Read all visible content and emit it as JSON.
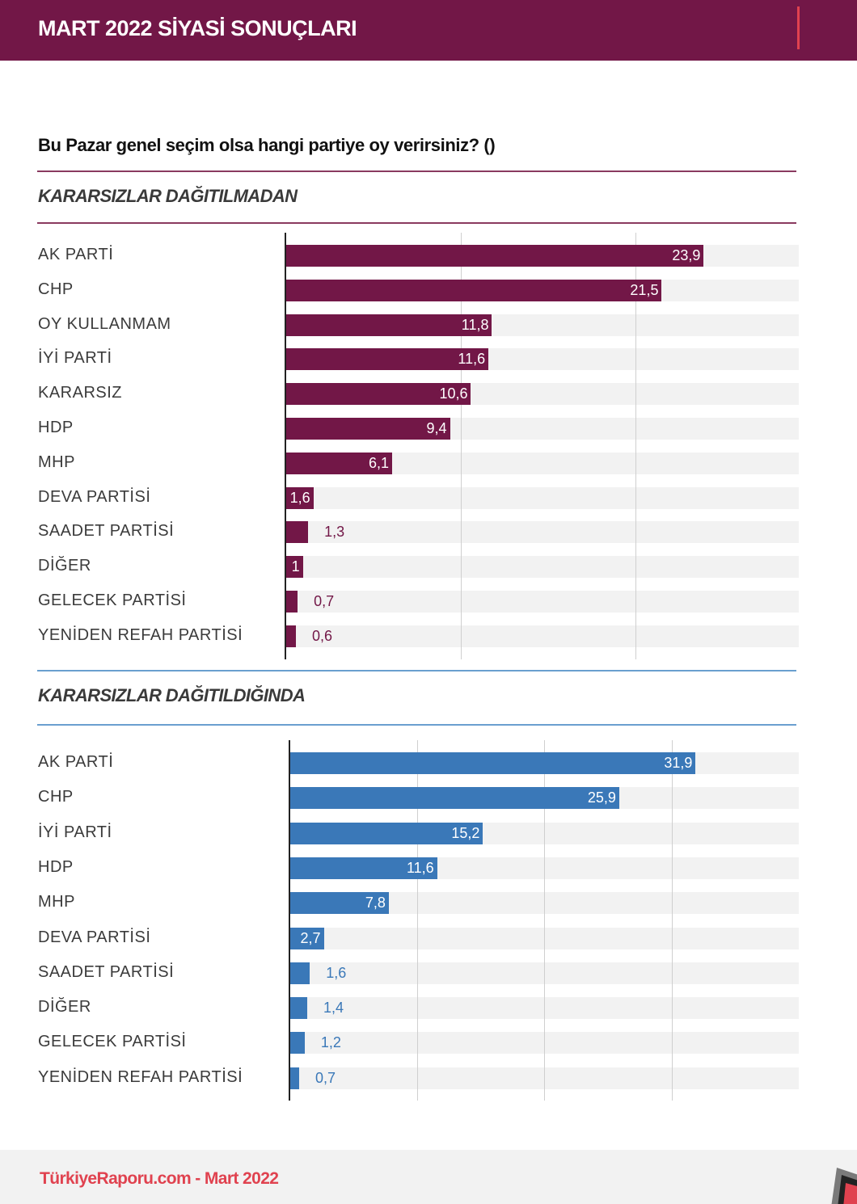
{
  "header": {
    "title": "MART 2022 SİYASİ SONUÇLARI"
  },
  "question": "Bu Pazar genel seçim olsa hangi partiye oy verirsiniz? ()",
  "colors": {
    "maroon": "#721747",
    "blue": "#3a78b8",
    "accent_red": "#e0424f",
    "track": "#f2f2f2"
  },
  "chart_data": [
    {
      "type": "bar",
      "orientation": "horizontal",
      "title": "KARARSIZLAR DAĞITILMADAN",
      "xlabel": "",
      "ylabel": "",
      "xlim": [
        0,
        30
      ],
      "grid_values": [
        10,
        20
      ],
      "grid": true,
      "color": "#721747",
      "categories": [
        "AK PARTİ",
        "CHP",
        "OY KULLANMAM",
        "İYİ PARTİ",
        "KARARSIZ",
        "HDP",
        "MHP",
        "DEVA PARTİSİ",
        "SAADET PARTİSİ",
        "DİĞER",
        "GELECEK PARTİSİ",
        "YENİDEN REFAH PARTİSİ"
      ],
      "values": [
        23.9,
        21.5,
        11.8,
        11.6,
        10.6,
        9.4,
        6.1,
        1.6,
        1.3,
        1,
        0.7,
        0.6
      ],
      "labels": [
        "23,9",
        "21,5",
        "11,8",
        "11,6",
        "10,6",
        "9,4",
        "6,1",
        "1,6",
        "1,3",
        "1",
        "0,7",
        "0,6"
      ],
      "label_inside": [
        true,
        true,
        true,
        true,
        true,
        true,
        true,
        true,
        false,
        true,
        false,
        false
      ]
    },
    {
      "type": "bar",
      "orientation": "horizontal",
      "title": "KARARSIZLAR DAĞITILDIĞINDA",
      "xlabel": "",
      "ylabel": "",
      "xlim": [
        0,
        40
      ],
      "grid_values": [
        10,
        20,
        30
      ],
      "grid": true,
      "color": "#3a78b8",
      "categories": [
        "AK PARTİ",
        "CHP",
        "İYİ PARTİ",
        "HDP",
        "MHP",
        "DEVA PARTİSİ",
        "SAADET PARTİSİ",
        "DİĞER",
        "GELECEK PARTİSİ",
        "YENİDEN REFAH PARTİSİ"
      ],
      "values": [
        31.9,
        25.9,
        15.2,
        11.6,
        7.8,
        2.7,
        1.6,
        1.4,
        1.2,
        0.7
      ],
      "labels": [
        "31,9",
        "25,9",
        "15,2",
        "11,6",
        "7,8",
        "2,7",
        "1,6",
        "1,4",
        "1,2",
        "0,7"
      ],
      "label_inside": [
        true,
        true,
        true,
        true,
        true,
        true,
        false,
        false,
        false,
        false
      ]
    }
  ],
  "footer": {
    "text": "TürkiyeRaporu.com - Mart 2022",
    "logo_icon": "brand-logo-icon"
  }
}
